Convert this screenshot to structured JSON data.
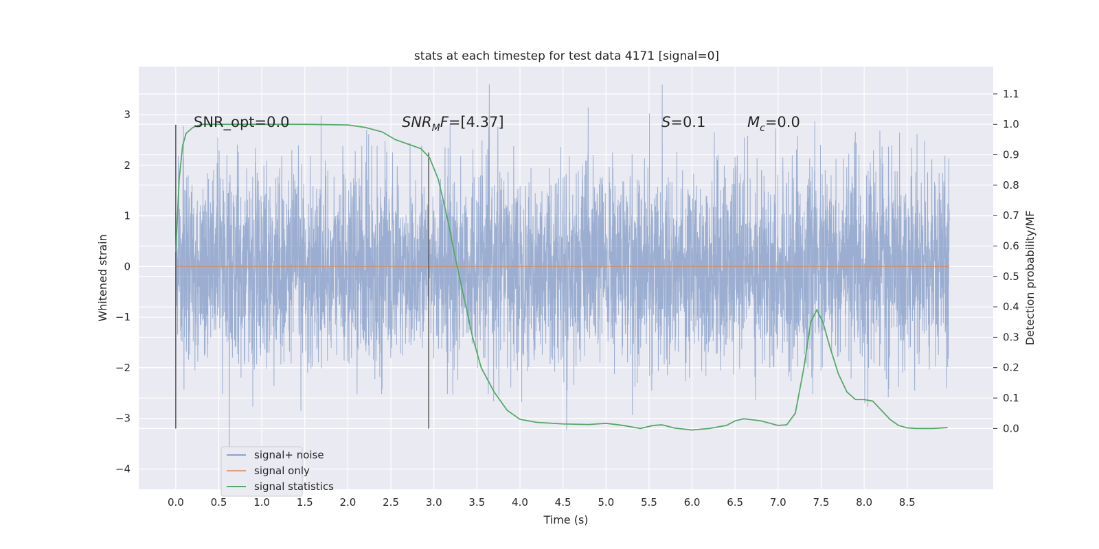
{
  "chart_data": {
    "type": "line",
    "title": "stats at each timestep for test data 4171 [signal=0]",
    "xlabel": "Time (s)",
    "ylabel": "Whitened strain",
    "y2label": "Detection probability/MF",
    "xlim": [
      -0.43,
      9.5
    ],
    "ylim": [
      -4.4,
      3.95
    ],
    "y2lim": [
      -0.2,
      1.19
    ],
    "x_ticks": [
      "0.0",
      "0.5",
      "1.0",
      "1.5",
      "2.0",
      "2.5",
      "3.0",
      "3.5",
      "4.0",
      "4.5",
      "5.0",
      "5.5",
      "6.0",
      "6.5",
      "7.0",
      "7.5",
      "8.0",
      "8.5"
    ],
    "y_ticks": [
      "3",
      "2",
      "1",
      "0",
      "−1",
      "−2",
      "−3",
      "−4"
    ],
    "y2_ticks": [
      "1.1",
      "1.0",
      "0.9",
      "0.8",
      "0.7",
      "0.6",
      "0.5",
      "0.4",
      "0.3",
      "0.2",
      "0.1",
      "0.0"
    ],
    "grid": true,
    "legend_position": "bottom-left",
    "legend": [
      "signal+ noise",
      "signal only",
      "signal statistics"
    ],
    "colors": {
      "background": "#eaeaf2",
      "grid": "#ffffff",
      "noise": "#4c72b0",
      "signal": "#dd8452",
      "stats": "#55a868",
      "vline": "#555555"
    },
    "annotations": {
      "snr_opt": "SNR_opt=0.0",
      "snr_mf_main": "SNR",
      "snr_mf_sub": "M",
      "snr_mf_it": "F",
      "snr_mf_value": "=[4.37]",
      "s_it": "S",
      "s_value": "=0.1",
      "mc_it": "M",
      "mc_sub": "c",
      "mc_value": "=0.0"
    },
    "vertical_lines": [
      {
        "x": 0.0,
        "ymin": -3.2,
        "ymax": 2.8
      },
      {
        "x": 2.94,
        "ymin": -3.2,
        "ymax": 2.25
      }
    ],
    "series": [
      {
        "name": "signal+ noise",
        "kind": "noise",
        "x_range": [
          0.0,
          8.99
        ],
        "amplitude_std": 0.95,
        "ymin": -4.0,
        "ymax": 3.6
      },
      {
        "name": "signal only",
        "x": [
          0.0,
          8.99
        ],
        "y": [
          0.0,
          0.0
        ]
      },
      {
        "name": "signal statistics",
        "axis": "right",
        "x": [
          0.0,
          0.04,
          0.08,
          0.12,
          0.2,
          0.3,
          0.5,
          1.0,
          1.5,
          2.0,
          2.2,
          2.4,
          2.55,
          2.7,
          2.85,
          2.95,
          3.05,
          3.15,
          3.25,
          3.35,
          3.45,
          3.55,
          3.7,
          3.85,
          4.0,
          4.2,
          4.5,
          4.8,
          5.0,
          5.2,
          5.4,
          5.55,
          5.65,
          5.8,
          6.0,
          6.2,
          6.4,
          6.5,
          6.6,
          6.8,
          7.0,
          7.1,
          7.2,
          7.3,
          7.38,
          7.45,
          7.52,
          7.6,
          7.7,
          7.8,
          7.9,
          8.0,
          8.1,
          8.2,
          8.3,
          8.4,
          8.5,
          8.6,
          8.8,
          8.97
        ],
        "y": [
          0.58,
          0.82,
          0.93,
          0.97,
          0.99,
          1.0,
          1.0,
          1.0,
          1.0,
          0.998,
          0.99,
          0.975,
          0.95,
          0.935,
          0.92,
          0.89,
          0.82,
          0.7,
          0.56,
          0.43,
          0.3,
          0.2,
          0.12,
          0.06,
          0.03,
          0.02,
          0.015,
          0.013,
          0.017,
          0.01,
          0.0,
          0.01,
          0.012,
          0.001,
          -0.005,
          0.0,
          0.01,
          0.025,
          0.032,
          0.025,
          0.01,
          0.012,
          0.05,
          0.2,
          0.35,
          0.39,
          0.35,
          0.27,
          0.18,
          0.12,
          0.095,
          0.095,
          0.09,
          0.06,
          0.03,
          0.01,
          0.002,
          0.0,
          0.0,
          0.003
        ]
      }
    ]
  }
}
